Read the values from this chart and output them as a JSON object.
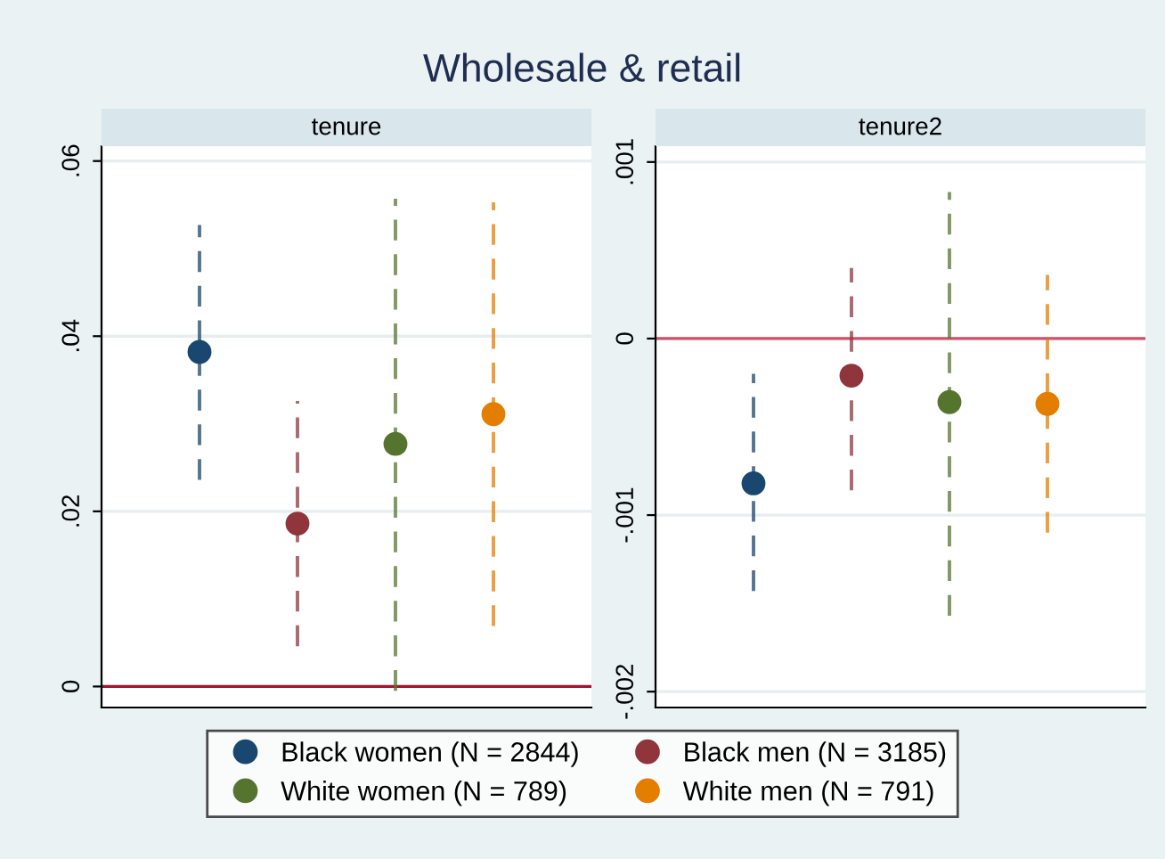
{
  "chart_data": [
    {
      "type": "scatter",
      "title": "Wholesale & retail",
      "subtitle": "tenure",
      "categories": [
        null,
        null,
        null,
        null
      ],
      "ylim": [
        -0.0024,
        0.0617
      ],
      "yticks": [
        {
          "value": 0,
          "label": "0"
        },
        {
          "value": 0.02,
          "label": ".02"
        },
        {
          "value": 0.04,
          "label": ".04"
        },
        {
          "value": 0.06,
          "label": ".06"
        }
      ],
      "grid": "y",
      "marker": "circle",
      "line_style": "dashed",
      "legend": "bottom",
      "tick_labels": "y",
      "ref_lines": [
        {
          "axis": "y",
          "value": 0,
          "color": "#a8102e"
        }
      ],
      "series": [
        {
          "name": "Black women (N = 2844)",
          "color": "#1a476f",
          "values": [
            0.0382,
            null,
            null,
            null
          ],
          "errors": [
            [
              0.0236,
              0.0527
            ],
            null,
            null,
            null
          ]
        },
        {
          "name": "Black men (N = 3185)",
          "color": "#90353b",
          "values": [
            null,
            0.0186,
            null,
            null
          ],
          "errors": [
            null,
            [
              0.0046,
              0.0326
            ],
            null,
            null
          ]
        },
        {
          "name": "White women (N = 789)",
          "color": "#55752f",
          "values": [
            null,
            null,
            0.0277,
            null
          ],
          "errors": [
            null,
            null,
            [
              -0.0005,
              0.0557
            ],
            null
          ]
        },
        {
          "name": "White men (N = 791)",
          "color": "#e37e00",
          "values": [
            null,
            null,
            null,
            0.0311
          ],
          "errors": [
            null,
            null,
            null,
            [
              0.0069,
              0.0553
            ]
          ]
        }
      ]
    },
    {
      "type": "scatter",
      "subtitle": "tenure2",
      "categories": [
        null,
        null,
        null,
        null
      ],
      "ylim": [
        -0.00209,
        0.00109
      ],
      "yticks": [
        {
          "value": -0.002,
          "label": "-.002"
        },
        {
          "value": -0.001,
          "label": "-.001"
        },
        {
          "value": 0,
          "label": "0"
        },
        {
          "value": 0.001,
          "label": ".001"
        }
      ],
      "grid": "y",
      "marker": "circle",
      "line_style": "dashed",
      "legend": "bottom",
      "tick_labels": "y",
      "ref_lines": [
        {
          "axis": "y",
          "value": 0,
          "color": "#d0506a"
        }
      ],
      "series": [
        {
          "name": "Black women (N = 2844)",
          "color": "#1a476f",
          "values": [
            -0.00082,
            null,
            null,
            null
          ],
          "errors": [
            [
              -0.00143,
              -0.0002
            ],
            null,
            null,
            null
          ]
        },
        {
          "name": "Black men (N = 3185)",
          "color": "#90353b",
          "values": [
            null,
            -0.00021,
            null,
            null
          ],
          "errors": [
            null,
            [
              -0.00086,
              0.0004
            ],
            null,
            null
          ]
        },
        {
          "name": "White women (N = 789)",
          "color": "#55752f",
          "values": [
            null,
            null,
            -0.00036,
            null
          ],
          "errors": [
            null,
            null,
            [
              -0.00157,
              0.00083
            ],
            null
          ]
        },
        {
          "name": "White men (N = 791)",
          "color": "#e37e00",
          "values": [
            null,
            null,
            null,
            -0.00037
          ],
          "errors": [
            null,
            null,
            null,
            [
              -0.0011,
              0.00036
            ]
          ]
        }
      ]
    }
  ]
}
